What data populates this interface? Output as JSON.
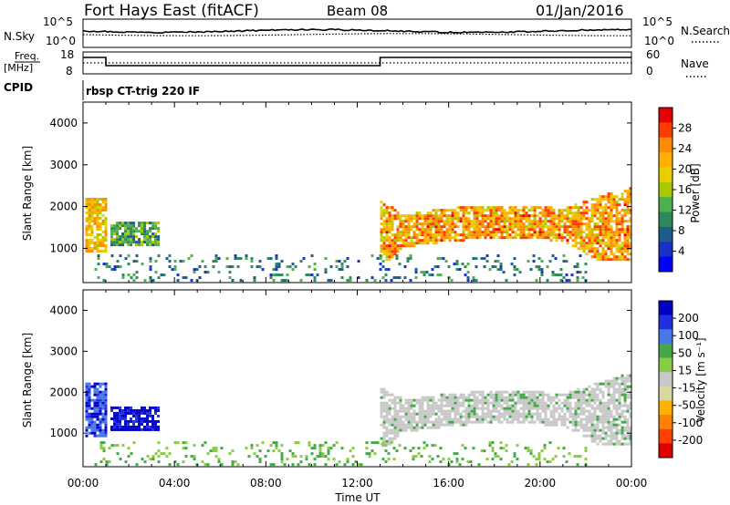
{
  "header": {
    "station": "Fort Hays East (fitACF)",
    "beam": "Beam 08",
    "date": "01/Jan/2016"
  },
  "labels": {
    "nsky": "N.Sky",
    "nsearch": "N.Search",
    "freq_top": "Freq.",
    "freq_unit": "[MHz]",
    "nave": "Nave",
    "cpid": "CPID",
    "cpid_value": "rbsp CT-trig 220 IF",
    "ylabel": "Slant Range [km]",
    "xlabel": "Time UT",
    "power_label": "Power [dB]",
    "velocity_label": "Velocity [m s⁻¹]"
  },
  "noise_panel": {
    "left_ticks": [
      "10^5",
      "10^0"
    ],
    "right_ticks": [
      "10^5",
      "10^0"
    ]
  },
  "freq_panel": {
    "left_ticks": [
      "18",
      "8"
    ],
    "right_ticks": [
      "60",
      "0"
    ]
  },
  "chart_data": [
    {
      "type": "heatmap",
      "name": "power",
      "x": [
        "00:00",
        "04:00",
        "08:00",
        "12:00",
        "16:00",
        "20:00",
        "00:00"
      ],
      "xlim": [
        0,
        24
      ],
      "ylim": [
        180,
        4500
      ],
      "yticks": [
        1000,
        2000,
        3000,
        4000
      ],
      "colorbar": {
        "ticks": [
          "28",
          "24",
          "20",
          "16",
          "12",
          "8",
          "4"
        ],
        "colors": [
          "#e60000",
          "#ff3c00",
          "#ff8c00",
          "#ffb000",
          "#e8d000",
          "#a8c800",
          "#4cb050",
          "#2c8a5a",
          "#1e5c8c",
          "#1830c8",
          "#0000ff"
        ]
      },
      "regions": [
        {
          "t": [
            0.1,
            1.0
          ],
          "r": [
            900,
            2200
          ],
          "v": 20
        },
        {
          "t": [
            1.2,
            3.3
          ],
          "r": [
            1050,
            1600
          ],
          "v": 11
        },
        {
          "t": [
            13.0,
            24.0
          ],
          "r": [
            700,
            2500
          ],
          "v": 22
        },
        {
          "t": [
            0.5,
            22.0
          ],
          "r": [
            200,
            800
          ],
          "v": 8
        }
      ]
    },
    {
      "type": "heatmap",
      "name": "velocity",
      "x": [
        "00:00",
        "04:00",
        "08:00",
        "12:00",
        "16:00",
        "20:00",
        "00:00"
      ],
      "xlim": [
        0,
        24
      ],
      "ylim": [
        180,
        4500
      ],
      "yticks": [
        1000,
        2000,
        3000,
        4000
      ],
      "colorbar": {
        "ticks": [
          "200",
          "100",
          "50",
          "15",
          "-15",
          "-50",
          "-100",
          "-200"
        ],
        "colors": [
          "#0000c8",
          "#2030e0",
          "#4878e8",
          "#44a848",
          "#88cc44",
          "#c8c8c8",
          "#d8d8a0",
          "#ffb000",
          "#ff8000",
          "#ff4000",
          "#e00000"
        ]
      },
      "regions": [
        {
          "t": [
            0.1,
            1.0
          ],
          "r": [
            900,
            2200
          ],
          "v": 150
        },
        {
          "t": [
            1.2,
            3.3
          ],
          "r": [
            1050,
            1600
          ],
          "v": 250
        },
        {
          "t": [
            13.0,
            24.0
          ],
          "r": [
            700,
            2500
          ],
          "v": 0
        },
        {
          "t": [
            0.5,
            22.0
          ],
          "r": [
            200,
            800
          ],
          "v": 30
        }
      ]
    }
  ]
}
